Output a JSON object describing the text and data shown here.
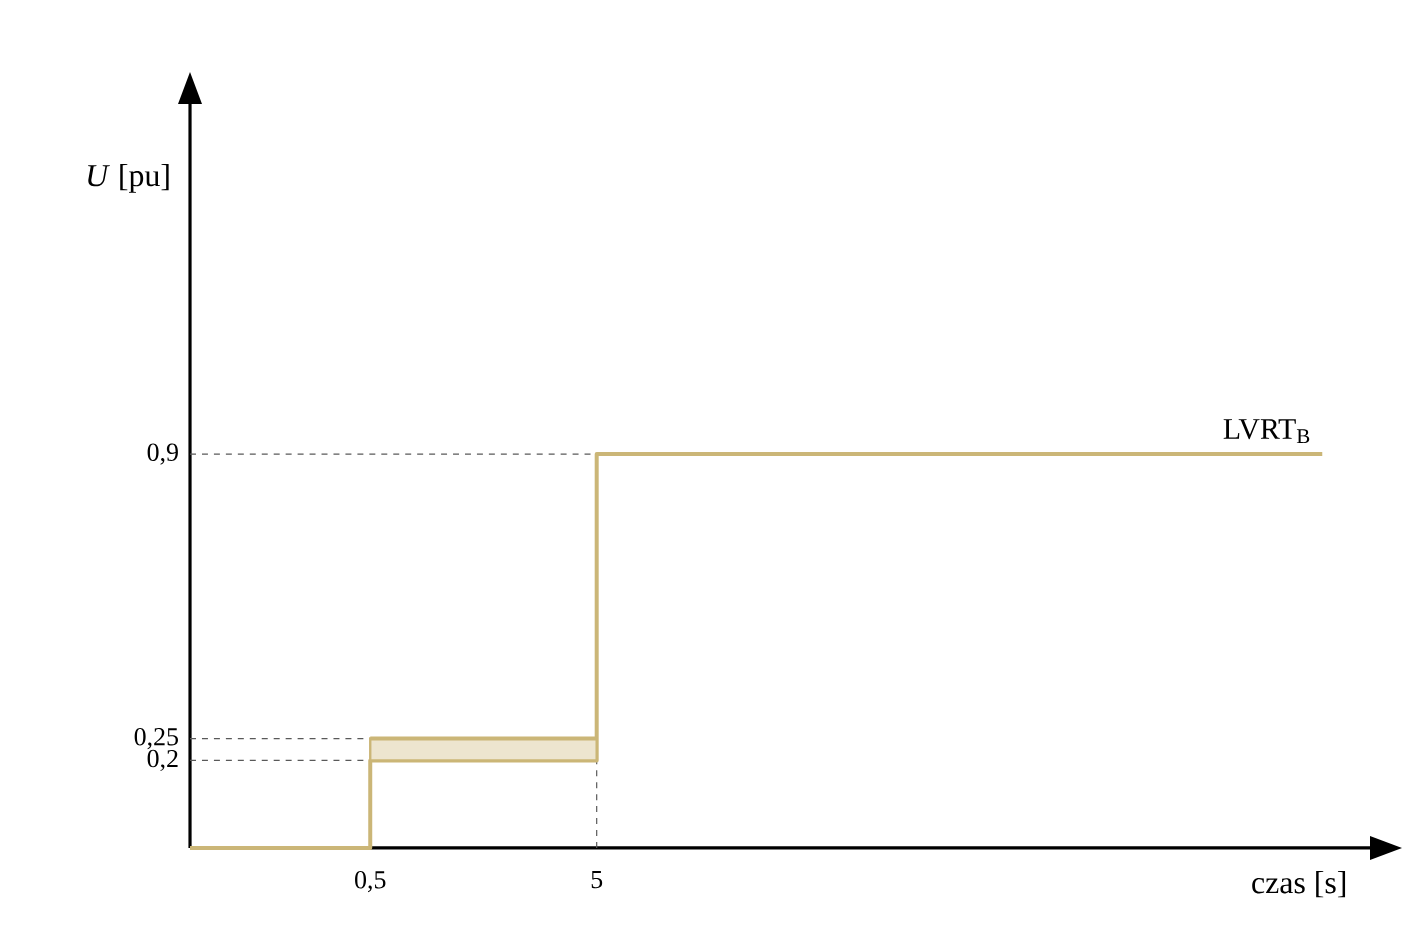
{
  "chart_data": {
    "type": "step",
    "xlabel": "czas [s]",
    "ylabel": "*U* [pu]",
    "log": "x",
    "xlim": [
      0.08,
      13000
    ],
    "ylim": [
      0,
      1.7
    ],
    "xticks": [
      {
        "value": 0.5,
        "label": "0,5"
      },
      {
        "value": 5,
        "label": "5"
      }
    ],
    "yticks": [
      {
        "value": 0.2,
        "label": "0,2"
      },
      {
        "value": 0.25,
        "label": "0,25"
      },
      {
        "value": 0.9,
        "label": "0,9"
      }
    ],
    "series": [
      {
        "name": "LVRT$_{B}$",
        "color": "#cbb677",
        "x": [
          0.08,
          0.5,
          5,
          8000
        ],
        "values": [
          0,
          0.2,
          0.9,
          0.9
        ]
      },
      {
        "type": "line",
        "color": "#cbb677",
        "x": [
          0.5,
          5
        ],
        "values": [
          0.25,
          0.25
        ],
        "lower": [
          0.2,
          0.2
        ],
        "upper": [
          0.25,
          0.25
        ]
      }
    ],
    "ref_lines": [
      {
        "axis": "y",
        "value": 0.9,
        "color": "#595959",
        "line_style": "dashed"
      },
      {
        "axis": "y",
        "value": 0.25,
        "color": "#595959",
        "line_style": "dashed"
      },
      {
        "axis": "y",
        "value": 0.2,
        "color": "#595959",
        "line_style": "dashed"
      },
      {
        "axis": "x",
        "value": 5,
        "color": "#595959",
        "line_style": "dashed"
      }
    ]
  }
}
